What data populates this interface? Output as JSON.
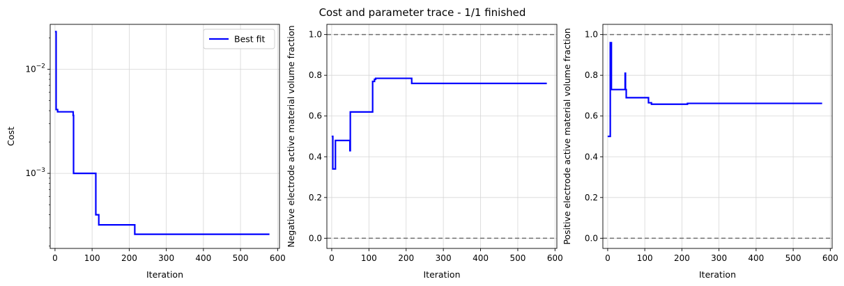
{
  "suptitle": "Cost and parameter trace - 1/1 finished",
  "chart_data": [
    {
      "type": "line",
      "title": "",
      "xlabel": "Iteration",
      "ylabel": "Cost",
      "yscale": "log",
      "xlim": [
        -13,
        605
      ],
      "ylim": [
        0.00019,
        0.027
      ],
      "xticks": [
        0,
        100,
        200,
        300,
        400,
        500,
        600
      ],
      "xtick_labels": [
        "0",
        "100",
        "200",
        "300",
        "400",
        "500",
        "600"
      ],
      "yticks": [
        0.001,
        0.01
      ],
      "ytick_label_bases": [
        "10",
        "10"
      ],
      "ytick_label_exps": [
        "−3",
        "−2"
      ],
      "grid": true,
      "legend": {
        "placement": "upper-right",
        "entries": [
          "Best fit"
        ]
      },
      "series": [
        {
          "name": "Best fit",
          "color": "#0000ff",
          "step": true,
          "x": [
            0,
            3,
            7,
            47,
            49,
            50,
            108,
            110,
            115,
            118,
            215,
            578
          ],
          "y": [
            0.023,
            0.0041,
            0.0039,
            0.0039,
            0.0036,
            0.001,
            0.001,
            0.0004,
            0.0004,
            0.00032,
            0.00026,
            0.00026
          ]
        }
      ],
      "hlines": []
    },
    {
      "type": "line",
      "title": "",
      "xlabel": "Iteration",
      "ylabel": "Negative electrode active material volume fraction",
      "yscale": "linear",
      "xlim": [
        -13,
        605
      ],
      "ylim": [
        -0.05,
        1.05
      ],
      "xticks": [
        0,
        100,
        200,
        300,
        400,
        500,
        600
      ],
      "xtick_labels": [
        "0",
        "100",
        "200",
        "300",
        "400",
        "500",
        "600"
      ],
      "yticks": [
        0,
        0.2,
        0.4,
        0.6,
        0.8,
        1.0
      ],
      "ytick_labels": [
        "0.0",
        "0.2",
        "0.4",
        "0.6",
        "0.8",
        "1.0"
      ],
      "grid": true,
      "series": [
        {
          "color": "#0000ff",
          "step": true,
          "x": [
            0,
            3,
            7,
            10,
            47,
            49,
            50,
            108,
            110,
            115,
            118,
            215,
            578
          ],
          "y": [
            0.5,
            0.34,
            0.34,
            0.48,
            0.48,
            0.43,
            0.62,
            0.62,
            0.77,
            0.78,
            0.785,
            0.76,
            0.76
          ]
        }
      ],
      "hlines": [
        {
          "y": 1.0,
          "color": "#6e6e6e",
          "style": "dashed"
        },
        {
          "y": 0.0,
          "color": "#6e6e6e",
          "style": "dashed"
        }
      ]
    },
    {
      "type": "line",
      "title": "",
      "xlabel": "Iteration",
      "ylabel": "Positive electrode active material volume fraction",
      "yscale": "linear",
      "xlim": [
        -13,
        605
      ],
      "ylim": [
        -0.05,
        1.05
      ],
      "xticks": [
        0,
        100,
        200,
        300,
        400,
        500,
        600
      ],
      "xtick_labels": [
        "0",
        "100",
        "200",
        "300",
        "400",
        "500",
        "600"
      ],
      "yticks": [
        0,
        0.2,
        0.4,
        0.6,
        0.8,
        1.0
      ],
      "ytick_labels": [
        "0.0",
        "0.2",
        "0.4",
        "0.6",
        "0.8",
        "1.0"
      ],
      "grid": true,
      "series": [
        {
          "color": "#0000ff",
          "step": true,
          "x": [
            0,
            3,
            7,
            10,
            45,
            47,
            48,
            50,
            108,
            110,
            115,
            118,
            215,
            578
          ],
          "y": [
            0.5,
            0.5,
            0.96,
            0.73,
            0.73,
            0.81,
            0.73,
            0.69,
            0.69,
            0.665,
            0.665,
            0.658,
            0.662,
            0.662
          ]
        }
      ],
      "hlines": [
        {
          "y": 1.0,
          "color": "#6e6e6e",
          "style": "dashed"
        },
        {
          "y": 0.0,
          "color": "#6e6e6e",
          "style": "dashed"
        }
      ]
    }
  ]
}
